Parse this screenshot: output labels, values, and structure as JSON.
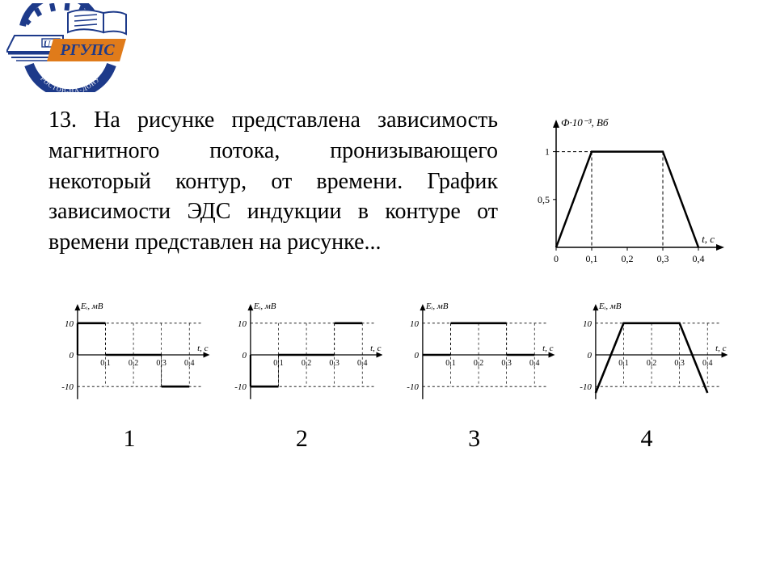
{
  "logo": {
    "text_abbr": "РГУПС",
    "text_small": "U",
    "ring_text": "РОСТОВ-НА-ДОНУ",
    "colors": {
      "navy": "#1d3a8a",
      "orange": "#e07b1a",
      "white": "#ffffff"
    }
  },
  "question": {
    "number": "13.",
    "body": "На рисунке представлена зависимость магнитного потока, пронизывающего некоторый контур, от времени. График зависимости ЭДС индукции в контуре от времени представлен на рисунке..."
  },
  "main_chart": {
    "ylabel": "Ф·10⁻³, Вб",
    "xlabel": "t, с",
    "yticks": [
      0.5,
      1
    ],
    "ytick_labels": [
      "0,5",
      "1"
    ],
    "xticks": [
      0,
      0.1,
      0.2,
      0.3,
      0.4
    ],
    "xtick_labels": [
      "0",
      "0,1",
      "0,2",
      "0,3",
      "0,4"
    ],
    "points": [
      [
        0,
        0
      ],
      [
        0.1,
        1
      ],
      [
        0.3,
        1
      ],
      [
        0.4,
        0
      ]
    ],
    "xrange": [
      0,
      0.45
    ],
    "yrange": [
      0,
      1.25
    ],
    "line_color": "#000000",
    "dash_color": "#000000",
    "font_size_axis": 10
  },
  "options": [
    {
      "label": "1",
      "ylabel": "Eᵢ, мВ",
      "xlabel": "t, с",
      "yticks": [
        -10,
        0,
        10
      ],
      "ytick_labels": [
        "-10",
        "0",
        "10"
      ],
      "xticks": [
        0.1,
        0.2,
        0.3,
        0.4
      ],
      "xtick_labels": [
        "0,1",
        "0,2",
        "0,3",
        "0,4"
      ],
      "xrange": [
        0,
        0.45
      ],
      "yrange": [
        -14,
        14
      ],
      "segments": [
        [
          [
            0,
            10
          ],
          [
            0.1,
            10
          ]
        ],
        [
          [
            0.1,
            0
          ],
          [
            0.3,
            0
          ]
        ],
        [
          [
            0.3,
            -10
          ],
          [
            0.4,
            -10
          ]
        ]
      ],
      "line_color": "#000000"
    },
    {
      "label": "2",
      "ylabel": "Eᵢ, мВ",
      "xlabel": "t, с",
      "yticks": [
        -10,
        0,
        10
      ],
      "ytick_labels": [
        "-10",
        "0",
        "10"
      ],
      "xticks": [
        0.1,
        0.2,
        0.3,
        0.4
      ],
      "xtick_labels": [
        "0,1",
        "0,2",
        "0,3",
        "0,4"
      ],
      "xrange": [
        0,
        0.45
      ],
      "yrange": [
        -14,
        14
      ],
      "segments": [
        [
          [
            0,
            -10
          ],
          [
            0.1,
            -10
          ]
        ],
        [
          [
            0.1,
            0
          ],
          [
            0.3,
            0
          ]
        ],
        [
          [
            0.3,
            10
          ],
          [
            0.4,
            10
          ]
        ]
      ],
      "line_color": "#000000"
    },
    {
      "label": "3",
      "ylabel": "Eᵢ, мВ",
      "xlabel": "t, с",
      "yticks": [
        -10,
        0,
        10
      ],
      "ytick_labels": [
        "-10",
        "0",
        "10"
      ],
      "xticks": [
        0.1,
        0.2,
        0.3,
        0.4
      ],
      "xtick_labels": [
        "0,1",
        "0,2",
        "0,3",
        "0,4"
      ],
      "xrange": [
        0,
        0.45
      ],
      "yrange": [
        -14,
        14
      ],
      "segments": [
        [
          [
            0,
            0
          ],
          [
            0.1,
            0
          ]
        ],
        [
          [
            0.1,
            10
          ],
          [
            0.3,
            10
          ]
        ],
        [
          [
            0.3,
            0
          ],
          [
            0.4,
            0
          ]
        ]
      ],
      "line_color": "#000000"
    },
    {
      "label": "4",
      "ylabel": "Eᵢ, мВ",
      "xlabel": "t, с",
      "yticks": [
        -10,
        0,
        10
      ],
      "ytick_labels": [
        "-10",
        "0",
        "10"
      ],
      "xticks": [
        0.1,
        0.2,
        0.3,
        0.4
      ],
      "xtick_labels": [
        "0,1",
        "0,2",
        "0,3",
        "0,4"
      ],
      "xrange": [
        0,
        0.45
      ],
      "yrange": [
        -14,
        14
      ],
      "polyline": [
        [
          0,
          -12
        ],
        [
          0.1,
          10
        ],
        [
          0.3,
          10
        ],
        [
          0.4,
          -12
        ]
      ],
      "line_color": "#000000"
    }
  ]
}
